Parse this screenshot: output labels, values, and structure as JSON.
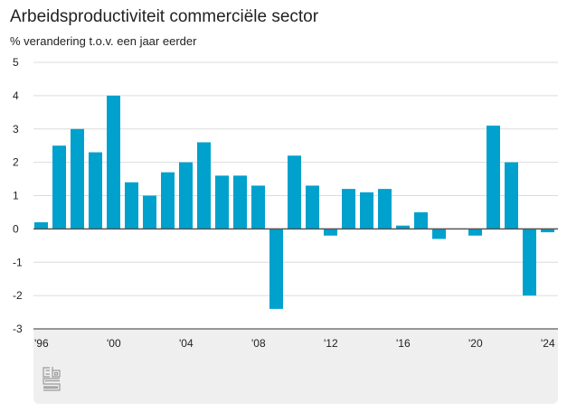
{
  "chart_data": {
    "type": "bar",
    "title": "Arbeidsproductiviteit commerciële sector",
    "subtitle": "% verandering t.o.v. een jaar eerder",
    "xlabel": "",
    "ylabel": "% verandering t.o.v. een jaar eerder",
    "ylim": [
      -3,
      5
    ],
    "yticks": [
      "5",
      "4",
      "3",
      "2",
      "1",
      "0",
      "-1",
      "-2",
      "-3"
    ],
    "ytick_values": [
      5,
      4,
      3,
      2,
      1,
      0,
      -1,
      -2,
      -3
    ],
    "xtick_labels": [
      "'96",
      "'00",
      "'04",
      "'08",
      "'12",
      "'16",
      "'20",
      "'24"
    ],
    "xtick_years": [
      1996,
      2000,
      2004,
      2008,
      2012,
      2016,
      2020,
      2024
    ],
    "grid": true,
    "color": "#00a1cd",
    "categories": [
      1996,
      1997,
      1998,
      1999,
      2000,
      2001,
      2002,
      2003,
      2004,
      2005,
      2006,
      2007,
      2008,
      2009,
      2010,
      2011,
      2012,
      2013,
      2014,
      2015,
      2016,
      2017,
      2018,
      2019,
      2020,
      2021,
      2022,
      2023,
      2024
    ],
    "values": [
      0.2,
      2.5,
      3.0,
      2.3,
      4.0,
      1.4,
      1.0,
      1.7,
      2.0,
      2.6,
      1.6,
      1.6,
      1.3,
      -2.4,
      2.2,
      1.3,
      -0.2,
      1.2,
      1.1,
      1.2,
      0.1,
      0.5,
      -0.3,
      0.0,
      -0.2,
      3.1,
      2.0,
      -2.0,
      -0.1
    ]
  },
  "footer": {
    "logo": "cbs-logo-icon"
  }
}
